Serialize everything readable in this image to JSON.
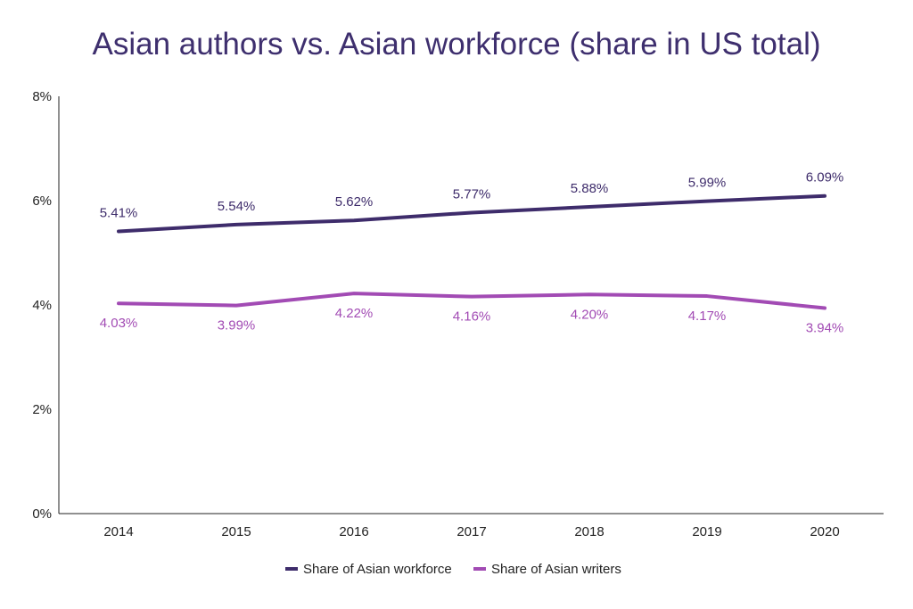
{
  "chart_data": {
    "type": "line",
    "title": "Asian authors vs. Asian workforce (share in US total)",
    "xlabel": "",
    "ylabel": "",
    "categories": [
      "2014",
      "2015",
      "2016",
      "2017",
      "2018",
      "2019",
      "2020"
    ],
    "ylim": [
      0,
      8
    ],
    "y_ticks": [
      "0%",
      "2%",
      "4%",
      "6%",
      "8%"
    ],
    "grid": false,
    "legend_position": "bottom",
    "series": [
      {
        "name": "Share of Asian workforce",
        "color": "#3e2c6b",
        "values": [
          5.41,
          5.54,
          5.62,
          5.77,
          5.88,
          5.99,
          6.09
        ],
        "labels": [
          "5.41%",
          "5.54%",
          "5.62%",
          "5.77%",
          "5.88%",
          "5.99%",
          "6.09%"
        ]
      },
      {
        "name": "Share of Asian writers",
        "color": "#a24bb4",
        "values": [
          4.03,
          3.99,
          4.22,
          4.16,
          4.2,
          4.17,
          3.94
        ],
        "labels": [
          "4.03%",
          "3.99%",
          "4.22%",
          "4.16%",
          "4.20%",
          "4.17%",
          "3.94%"
        ]
      }
    ]
  }
}
